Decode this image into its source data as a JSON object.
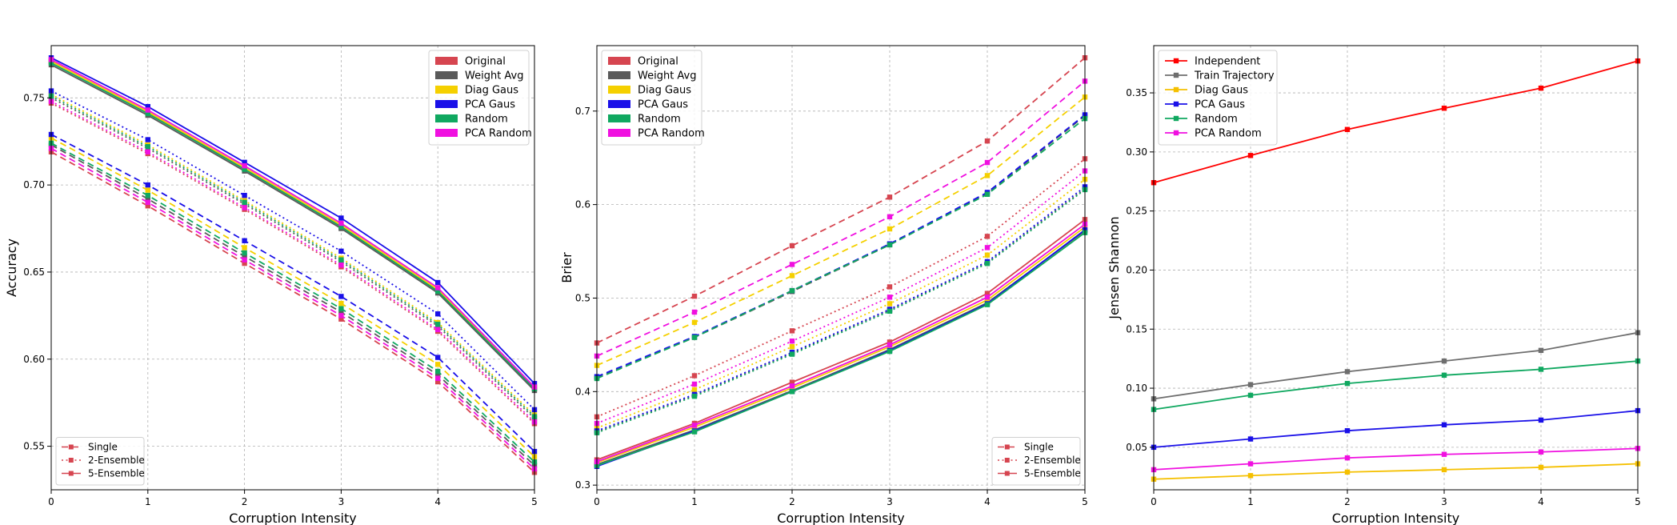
{
  "chart_data": [
    {
      "type": "line",
      "xlabel": "Corruption Intensity",
      "ylabel": "Accuracy",
      "x": [
        0,
        1,
        2,
        3,
        4,
        5
      ],
      "xlim": [
        0,
        5
      ],
      "ylim": [
        0.525,
        0.78
      ],
      "yticks": [
        0.55,
        0.6,
        0.65,
        0.7,
        0.75
      ],
      "ytick_labels": [
        "0.55",
        "0.60",
        "0.65",
        "0.70",
        "0.75"
      ],
      "grid": true,
      "method_legend": {
        "placement": "top-right",
        "entries": [
          {
            "name": "Original",
            "color": "#d64550"
          },
          {
            "name": "Weight Avg",
            "color": "#5a5a5a"
          },
          {
            "name": "Diag Gaus",
            "color": "#f5d000"
          },
          {
            "name": "PCA Gaus",
            "color": "#1a10e8"
          },
          {
            "name": "Random",
            "color": "#10a860"
          },
          {
            "name": "PCA Random",
            "color": "#f010e0"
          }
        ]
      },
      "style_legend": {
        "placement": "bottom-left",
        "entries": [
          {
            "name": "Single",
            "dash": "dashed"
          },
          {
            "name": "2-Ensemble",
            "dash": "dotted"
          },
          {
            "name": "5-Ensemble",
            "dash": "solid"
          }
        ]
      },
      "series": [
        {
          "method": "Original",
          "style": "Single",
          "values": [
            0.719,
            0.688,
            0.655,
            0.623,
            0.587,
            0.535
          ]
        },
        {
          "method": "Original",
          "style": "2-Ensemble",
          "values": [
            0.747,
            0.718,
            0.686,
            0.653,
            0.616,
            0.563
          ]
        },
        {
          "method": "Original",
          "style": "5-Ensemble",
          "values": [
            0.771,
            0.742,
            0.709,
            0.676,
            0.639,
            0.583
          ]
        },
        {
          "method": "Weight Avg",
          "style": "Single",
          "values": [
            0.723,
            0.692,
            0.659,
            0.627,
            0.591,
            0.539
          ]
        },
        {
          "method": "Weight Avg",
          "style": "2-Ensemble",
          "values": [
            0.75,
            0.721,
            0.689,
            0.656,
            0.619,
            0.566
          ]
        },
        {
          "method": "Weight Avg",
          "style": "5-Ensemble",
          "values": [
            0.769,
            0.74,
            0.708,
            0.675,
            0.638,
            0.582
          ]
        },
        {
          "method": "Diag Gaus",
          "style": "Single",
          "values": [
            0.727,
            0.697,
            0.664,
            0.632,
            0.597,
            0.544
          ]
        },
        {
          "method": "Diag Gaus",
          "style": "2-Ensemble",
          "values": [
            0.752,
            0.723,
            0.691,
            0.658,
            0.621,
            0.568
          ]
        },
        {
          "method": "Diag Gaus",
          "style": "5-Ensemble",
          "values": [
            0.771,
            0.742,
            0.71,
            0.677,
            0.64,
            0.584
          ]
        },
        {
          "method": "PCA Gaus",
          "style": "Single",
          "values": [
            0.729,
            0.7,
            0.668,
            0.636,
            0.601,
            0.547
          ]
        },
        {
          "method": "PCA Gaus",
          "style": "2-Ensemble",
          "values": [
            0.754,
            0.726,
            0.694,
            0.662,
            0.626,
            0.571
          ]
        },
        {
          "method": "PCA Gaus",
          "style": "5-Ensemble",
          "values": [
            0.773,
            0.745,
            0.713,
            0.681,
            0.644,
            0.586
          ]
        },
        {
          "method": "Random",
          "style": "Single",
          "values": [
            0.724,
            0.694,
            0.661,
            0.629,
            0.593,
            0.541
          ]
        },
        {
          "method": "Random",
          "style": "2-Ensemble",
          "values": [
            0.751,
            0.722,
            0.69,
            0.657,
            0.62,
            0.567
          ]
        },
        {
          "method": "Random",
          "style": "5-Ensemble",
          "values": [
            0.77,
            0.741,
            0.709,
            0.676,
            0.639,
            0.583
          ]
        },
        {
          "method": "PCA Random",
          "style": "Single",
          "values": [
            0.721,
            0.69,
            0.657,
            0.625,
            0.589,
            0.537
          ]
        },
        {
          "method": "PCA Random",
          "style": "2-Ensemble",
          "values": [
            0.748,
            0.719,
            0.687,
            0.654,
            0.617,
            0.564
          ]
        },
        {
          "method": "PCA Random",
          "style": "5-Ensemble",
          "values": [
            0.772,
            0.743,
            0.711,
            0.678,
            0.641,
            0.584
          ]
        }
      ]
    },
    {
      "type": "line",
      "xlabel": "Corruption Intensity",
      "ylabel": "Brier",
      "x": [
        0,
        1,
        2,
        3,
        4,
        5
      ],
      "xlim": [
        0,
        5
      ],
      "ylim": [
        0.295,
        0.77
      ],
      "yticks": [
        0.3,
        0.4,
        0.5,
        0.6,
        0.7
      ],
      "ytick_labels": [
        "0.3",
        "0.4",
        "0.5",
        "0.6",
        "0.7"
      ],
      "grid": true,
      "method_legend": {
        "placement": "top-left",
        "entries": [
          {
            "name": "Original",
            "color": "#d64550"
          },
          {
            "name": "Weight Avg",
            "color": "#5a5a5a"
          },
          {
            "name": "Diag Gaus",
            "color": "#f5d000"
          },
          {
            "name": "PCA Gaus",
            "color": "#1a10e8"
          },
          {
            "name": "Random",
            "color": "#10a860"
          },
          {
            "name": "PCA Random",
            "color": "#f010e0"
          }
        ]
      },
      "style_legend": {
        "placement": "bottom-right",
        "entries": [
          {
            "name": "Single",
            "dash": "dashed"
          },
          {
            "name": "2-Ensemble",
            "dash": "dotted"
          },
          {
            "name": "5-Ensemble",
            "dash": "solid"
          }
        ]
      },
      "series": [
        {
          "method": "Original",
          "style": "Single",
          "values": [
            0.452,
            0.502,
            0.556,
            0.608,
            0.668,
            0.757
          ]
        },
        {
          "method": "Original",
          "style": "2-Ensemble",
          "values": [
            0.373,
            0.417,
            0.465,
            0.512,
            0.566,
            0.649
          ]
        },
        {
          "method": "Original",
          "style": "5-Ensemble",
          "values": [
            0.327,
            0.366,
            0.41,
            0.453,
            0.505,
            0.584
          ]
        },
        {
          "method": "Weight Avg",
          "style": "Single",
          "values": [
            0.415,
            0.458,
            0.507,
            0.557,
            0.612,
            0.695
          ]
        },
        {
          "method": "Weight Avg",
          "style": "2-Ensemble",
          "values": [
            0.357,
            0.396,
            0.441,
            0.487,
            0.538,
            0.617
          ]
        },
        {
          "method": "Weight Avg",
          "style": "5-Ensemble",
          "values": [
            0.322,
            0.359,
            0.401,
            0.445,
            0.495,
            0.572
          ]
        },
        {
          "method": "Diag Gaus",
          "style": "Single",
          "values": [
            0.428,
            0.474,
            0.524,
            0.574,
            0.631,
            0.715
          ]
        },
        {
          "method": "Diag Gaus",
          "style": "2-Ensemble",
          "values": [
            0.361,
            0.402,
            0.448,
            0.494,
            0.546,
            0.627
          ]
        },
        {
          "method": "Diag Gaus",
          "style": "5-Ensemble",
          "values": [
            0.324,
            0.362,
            0.404,
            0.448,
            0.498,
            0.576
          ]
        },
        {
          "method": "PCA Gaus",
          "style": "Single",
          "values": [
            0.416,
            0.459,
            0.508,
            0.558,
            0.613,
            0.696
          ]
        },
        {
          "method": "PCA Gaus",
          "style": "2-Ensemble",
          "values": [
            0.358,
            0.397,
            0.442,
            0.488,
            0.539,
            0.619
          ]
        },
        {
          "method": "PCA Gaus",
          "style": "5-Ensemble",
          "values": [
            0.32,
            0.358,
            0.4,
            0.444,
            0.494,
            0.573
          ]
        },
        {
          "method": "Random",
          "style": "Single",
          "values": [
            0.414,
            0.458,
            0.508,
            0.557,
            0.611,
            0.692
          ]
        },
        {
          "method": "Random",
          "style": "2-Ensemble",
          "values": [
            0.356,
            0.395,
            0.44,
            0.486,
            0.537,
            0.616
          ]
        },
        {
          "method": "Random",
          "style": "5-Ensemble",
          "values": [
            0.321,
            0.357,
            0.4,
            0.443,
            0.493,
            0.57
          ]
        },
        {
          "method": "PCA Random",
          "style": "Single",
          "values": [
            0.438,
            0.485,
            0.536,
            0.587,
            0.645,
            0.732
          ]
        },
        {
          "method": "PCA Random",
          "style": "2-Ensemble",
          "values": [
            0.366,
            0.408,
            0.454,
            0.501,
            0.554,
            0.636
          ]
        },
        {
          "method": "PCA Random",
          "style": "5-Ensemble",
          "values": [
            0.325,
            0.364,
            0.406,
            0.45,
            0.501,
            0.579
          ]
        }
      ]
    },
    {
      "type": "line",
      "xlabel": "Corruption Intensity",
      "ylabel": "Jensen Shannon",
      "x": [
        0,
        1,
        2,
        3,
        4,
        5
      ],
      "xlim": [
        0,
        5
      ],
      "ylim": [
        0.014,
        0.39
      ],
      "yticks": [
        0.05,
        0.1,
        0.15,
        0.2,
        0.25,
        0.3,
        0.35
      ],
      "ytick_labels": [
        "0.05",
        "0.10",
        "0.15",
        "0.20",
        "0.25",
        "0.30",
        "0.35"
      ],
      "grid": true,
      "legend": {
        "placement": "top-left",
        "entries": [
          {
            "name": "Independent",
            "color": "#ff0000"
          },
          {
            "name": "Train Trajectory",
            "color": "#6e6e6e"
          },
          {
            "name": "Diag Gaus",
            "color": "#f5c000"
          },
          {
            "name": "PCA Gaus",
            "color": "#1a10e8"
          },
          {
            "name": "Random",
            "color": "#10a860"
          },
          {
            "name": "PCA Random",
            "color": "#f010e0"
          }
        ]
      },
      "series": [
        {
          "name": "Independent",
          "values": [
            0.274,
            0.297,
            0.319,
            0.337,
            0.354,
            0.377
          ]
        },
        {
          "name": "Train Trajectory",
          "values": [
            0.091,
            0.103,
            0.114,
            0.123,
            0.132,
            0.147
          ]
        },
        {
          "name": "Diag Gaus",
          "values": [
            0.023,
            0.026,
            0.029,
            0.031,
            0.033,
            0.036
          ]
        },
        {
          "name": "PCA Gaus",
          "values": [
            0.05,
            0.057,
            0.064,
            0.069,
            0.073,
            0.081
          ]
        },
        {
          "name": "Random",
          "values": [
            0.082,
            0.094,
            0.104,
            0.111,
            0.116,
            0.123
          ]
        },
        {
          "name": "PCA Random",
          "values": [
            0.031,
            0.036,
            0.041,
            0.044,
            0.046,
            0.049
          ]
        }
      ]
    }
  ]
}
